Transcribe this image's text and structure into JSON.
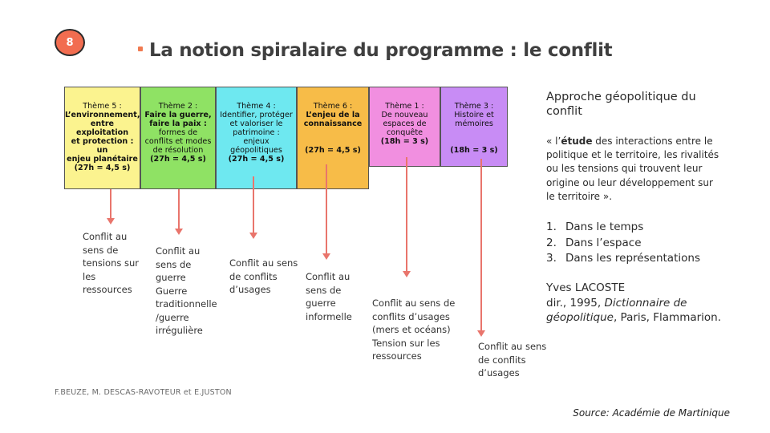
{
  "badge": "8",
  "title": "La notion spiralaire du programme : le conflit",
  "themes": [
    {
      "lines": [
        "Thème 5 :",
        "L’environnement,",
        "entre exploitation",
        "et protection : un",
        "enjeu planétaire"
      ],
      "hours": "(27h = 4,5 s)",
      "color": "#fbf38f"
    },
    {
      "lines": [
        "Thème 2 :",
        "Faire la guerre,",
        "faire la paix :",
        "formes de",
        "conflits et modes",
        "de résolution"
      ],
      "hours": "(27h = 4,5 s)",
      "color": "#8fe264"
    },
    {
      "lines": [
        "Thème 4 :",
        "Identifier, protéger",
        "et valoriser le",
        "patrimoine :",
        "enjeux",
        "géopolitiques"
      ],
      "hours": "(27h = 4,5 s)",
      "color": "#6ee8f0"
    },
    {
      "lines": [
        "Thème 6 :",
        "L’enjeu de la",
        "connaissance"
      ],
      "hours": "(27h = 4,5 s)",
      "color": "#f7bc48"
    },
    {
      "lines": [
        "Thème 1 :",
        "De nouveau",
        "espaces de",
        "conquête"
      ],
      "hours": "(18h = 3 s)",
      "color": "#f18fe0"
    },
    {
      "lines": [
        "Thème 3 :",
        "Histoire et",
        "mémoires"
      ],
      "hours": "(18h = 3 s)",
      "color": "#c88cf5"
    }
  ],
  "labels": [
    [
      "Conflit au",
      "sens de",
      "tensions sur",
      "les",
      "ressources"
    ],
    [
      "Conflit au",
      "sens de",
      "guerre",
      "Guerre",
      "traditionnelle",
      "/guerre",
      "irrégulière"
    ],
    [
      "Conflit au sens",
      "de conflits",
      "d’usages"
    ],
    [
      "Conflit au",
      "sens de",
      "guerre",
      "informelle"
    ],
    [
      "Conflit au sens de",
      "conflits d’usages",
      "(mers et océans)",
      "Tension sur les",
      "ressources"
    ],
    [
      "Conflit au sens",
      "de conflits",
      "d’usages"
    ]
  ],
  "approach": {
    "title": [
      "Approche géopolitique du",
      "conflit"
    ],
    "quote_lines": [
      {
        "pre": "« l’",
        "bold": "étude",
        "post": " des interactions entre le"
      },
      {
        "pre": "politique et le territoire, les rivalités",
        "bold": "",
        "post": ""
      },
      {
        "pre": "ou les tensions qui trouvent leur",
        "bold": "",
        "post": ""
      },
      {
        "pre": "origine ou leur développement sur",
        "bold": "",
        "post": ""
      },
      {
        "pre": "le territoire ».",
        "bold": "",
        "post": ""
      }
    ],
    "list": [
      {
        "num": "1.",
        "text": "Dans le temps"
      },
      {
        "num": "2.",
        "text": "Dans l’espace"
      },
      {
        "num": "3.",
        "text": "Dans les représentations"
      }
    ],
    "ref": {
      "author": "Yves LACOSTE",
      "line2_pre": "dir., 1995, ",
      "line2_italic": "Dictionnaire de",
      "line3_italic": "géopolitique",
      "line3_post": ", Paris, Flammarion."
    }
  },
  "authors": "F.BEUZE, M. DESCAS-RAVOTEUR et E.JUSTON",
  "source": "Source: Académie de Martinique"
}
